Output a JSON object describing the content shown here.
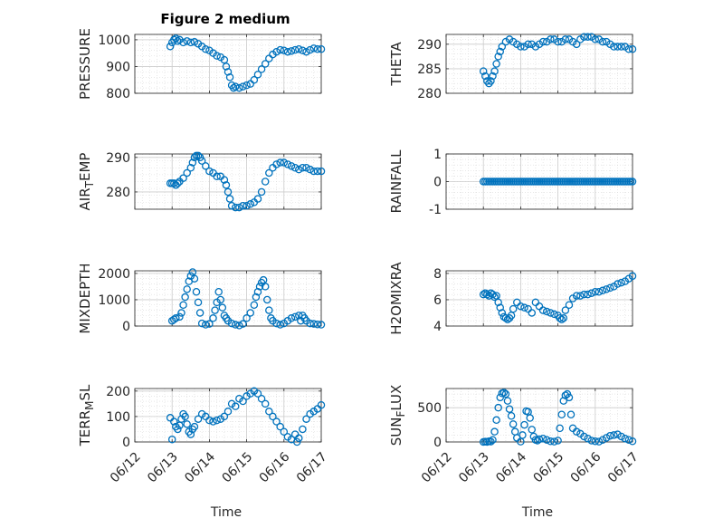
{
  "figure": {
    "title": "Figure 2 medium",
    "xlabel": "Time",
    "marker_color": "#0072BD",
    "x_ticks": [
      "06/12",
      "06/13",
      "06/14",
      "06/15",
      "06/16",
      "06/17"
    ]
  },
  "chart_data": [
    {
      "type": "scatter",
      "ylabel": "PRESSURE",
      "ylim": [
        800,
        1020
      ],
      "yticks": [
        800,
        900,
        1000
      ],
      "xlabel": "",
      "xlim_days": [
        "06/12",
        "06/17"
      ],
      "grid": true,
      "minor_grid": true,
      "series": [
        {
          "x": [
            0.95,
            1.0,
            1.05,
            1.1,
            1.15,
            1.2,
            1.3,
            1.4,
            1.5,
            1.6,
            1.7,
            1.8,
            1.9,
            2.0,
            2.1,
            2.2,
            2.3,
            2.4,
            2.45,
            2.5,
            2.55,
            2.6,
            2.65,
            2.7,
            2.8,
            2.9,
            3.0,
            3.1,
            3.2,
            3.3,
            3.4,
            3.5,
            3.6,
            3.7,
            3.8,
            3.9,
            4.0,
            4.1,
            4.2,
            4.3,
            4.4,
            4.5,
            4.6,
            4.7,
            4.8,
            4.9,
            5.0
          ],
          "y": [
            975,
            990,
            1000,
            1005,
            995,
            1000,
            990,
            995,
            990,
            992,
            985,
            975,
            965,
            960,
            950,
            940,
            935,
            925,
            900,
            880,
            860,
            830,
            820,
            825,
            820,
            825,
            830,
            835,
            850,
            870,
            890,
            910,
            930,
            945,
            955,
            962,
            960,
            955,
            958,
            962,
            965,
            960,
            955,
            962,
            968,
            965,
            965
          ]
        }
      ]
    },
    {
      "type": "scatter",
      "ylabel": "THETA",
      "ylim": [
        280,
        292
      ],
      "yticks": [
        280,
        285,
        290
      ],
      "xlabel": "",
      "xlim_days": [
        "06/12",
        "06/17"
      ],
      "grid": true,
      "minor_grid": true,
      "series": [
        {
          "x": [
            1.0,
            1.05,
            1.1,
            1.15,
            1.2,
            1.25,
            1.3,
            1.35,
            1.4,
            1.45,
            1.5,
            1.6,
            1.7,
            1.8,
            1.9,
            2.0,
            2.1,
            2.2,
            2.3,
            2.4,
            2.5,
            2.6,
            2.7,
            2.8,
            2.9,
            3.0,
            3.1,
            3.2,
            3.3,
            3.4,
            3.5,
            3.6,
            3.7,
            3.8,
            3.9,
            4.0,
            4.1,
            4.2,
            4.3,
            4.4,
            4.5,
            4.6,
            4.7,
            4.8,
            4.9,
            5.0
          ],
          "y": [
            284.5,
            283.5,
            282.5,
            282,
            282.5,
            283.5,
            284.5,
            286,
            287.5,
            288.5,
            289.5,
            290.5,
            291,
            290.5,
            290,
            289.5,
            289.5,
            290,
            290,
            289.5,
            290,
            290.5,
            290.5,
            291,
            291,
            290.5,
            290.5,
            291,
            291,
            290.5,
            290,
            291,
            291.5,
            291.5,
            291.5,
            291,
            291,
            290.5,
            290.5,
            290,
            289.5,
            289.5,
            289.5,
            289.5,
            289,
            289
          ]
        }
      ]
    },
    {
      "type": "scatter",
      "ylabel": "AIR_TEMP",
      "ylim": [
        275,
        291
      ],
      "yticks": [
        280,
        290
      ],
      "xlabel": "",
      "xlim_days": [
        "06/12",
        "06/17"
      ],
      "grid": true,
      "minor_grid": true,
      "series": [
        {
          "x": [
            0.95,
            1.0,
            1.05,
            1.1,
            1.15,
            1.2,
            1.3,
            1.4,
            1.5,
            1.55,
            1.6,
            1.65,
            1.7,
            1.75,
            1.8,
            1.9,
            2.0,
            2.1,
            2.2,
            2.3,
            2.4,
            2.45,
            2.5,
            2.55,
            2.6,
            2.7,
            2.8,
            2.9,
            3.0,
            3.1,
            3.2,
            3.3,
            3.4,
            3.5,
            3.6,
            3.7,
            3.8,
            3.9,
            4.0,
            4.1,
            4.2,
            4.3,
            4.4,
            4.5,
            4.6,
            4.7,
            4.8,
            4.9,
            5.0
          ],
          "y": [
            282.5,
            282.5,
            282.5,
            282,
            282.5,
            283,
            284,
            285.5,
            287,
            288.5,
            290,
            290.5,
            290.5,
            290,
            289,
            287.5,
            286,
            285.5,
            284.5,
            284.5,
            283.5,
            282,
            280,
            278,
            276,
            275.5,
            275.5,
            276,
            276,
            276.5,
            277,
            278,
            280,
            283,
            285.5,
            287,
            288,
            288.5,
            288.5,
            288,
            287.5,
            287,
            286.5,
            287,
            287,
            286.5,
            286,
            286,
            286
          ]
        }
      ]
    },
    {
      "type": "scatter",
      "ylabel": "RAINFALL",
      "ylim": [
        -1,
        1
      ],
      "yticks": [
        -1,
        0,
        1
      ],
      "xlabel": "",
      "xlim_days": [
        "06/12",
        "06/17"
      ],
      "grid": true,
      "minor_grid": true,
      "series": [
        {
          "x": [
            1.0,
            1.05,
            1.1,
            1.15,
            1.2,
            1.25,
            1.3,
            1.35,
            1.4,
            1.45,
            1.5,
            1.55,
            1.6,
            1.65,
            1.7,
            1.75,
            1.8,
            1.85,
            1.9,
            1.95,
            2.0,
            2.05,
            2.1,
            2.15,
            2.2,
            2.25,
            2.3,
            2.35,
            2.4,
            2.45,
            2.5,
            2.55,
            2.6,
            2.65,
            2.7,
            2.75,
            2.8,
            2.85,
            2.9,
            2.95,
            3.0,
            3.05,
            3.1,
            3.15,
            3.2,
            3.25,
            3.3,
            3.35,
            3.4,
            3.45,
            3.5,
            3.55,
            3.6,
            3.65,
            3.7,
            3.75,
            3.8,
            3.85,
            3.9,
            3.95,
            4.0,
            4.05,
            4.1,
            4.15,
            4.2,
            4.25,
            4.3,
            4.35,
            4.4,
            4.45,
            4.5,
            4.55,
            4.6,
            4.65,
            4.7,
            4.75,
            4.8,
            4.85,
            4.9,
            4.95,
            5.0
          ],
          "y": [
            0,
            0,
            0,
            0,
            0,
            0,
            0,
            0,
            0,
            0,
            0,
            0,
            0,
            0,
            0,
            0,
            0,
            0,
            0,
            0,
            0,
            0,
            0,
            0,
            0,
            0,
            0,
            0,
            0,
            0,
            0,
            0,
            0,
            0,
            0,
            0,
            0,
            0,
            0,
            0,
            0,
            0,
            0,
            0,
            0,
            0,
            0,
            0,
            0,
            0,
            0,
            0,
            0,
            0,
            0,
            0,
            0,
            0,
            0,
            0,
            0,
            0,
            0,
            0,
            0,
            0,
            0,
            0,
            0,
            0,
            0,
            0,
            0,
            0,
            0,
            0,
            0,
            0,
            0,
            0,
            0
          ]
        }
      ]
    },
    {
      "type": "scatter",
      "ylabel": "MIXDEPTH",
      "ylim": [
        0,
        2100
      ],
      "yticks": [
        0,
        1000,
        2000
      ],
      "xlabel": "",
      "xlim_days": [
        "06/12",
        "06/17"
      ],
      "grid": true,
      "minor_grid": true,
      "series": [
        {
          "x": [
            1.0,
            1.05,
            1.1,
            1.2,
            1.25,
            1.3,
            1.35,
            1.4,
            1.45,
            1.5,
            1.55,
            1.6,
            1.65,
            1.7,
            1.75,
            1.8,
            1.9,
            2.0,
            2.1,
            2.15,
            2.2,
            2.25,
            2.3,
            2.35,
            2.4,
            2.45,
            2.5,
            2.6,
            2.7,
            2.8,
            2.9,
            3.0,
            3.1,
            3.2,
            3.25,
            3.3,
            3.35,
            3.4,
            3.45,
            3.5,
            3.55,
            3.6,
            3.65,
            3.7,
            3.8,
            3.9,
            4.0,
            4.1,
            4.2,
            4.3,
            4.4,
            4.45,
            4.5,
            4.55,
            4.6,
            4.7,
            4.8,
            4.9,
            5.0
          ],
          "y": [
            200,
            250,
            300,
            350,
            500,
            800,
            1100,
            1400,
            1700,
            1900,
            2050,
            1800,
            1300,
            900,
            500,
            100,
            50,
            80,
            300,
            600,
            900,
            1300,
            1000,
            700,
            400,
            300,
            200,
            100,
            50,
            20,
            80,
            300,
            500,
            800,
            1100,
            1300,
            1500,
            1650,
            1750,
            1500,
            1000,
            600,
            300,
            200,
            100,
            50,
            100,
            200,
            300,
            350,
            400,
            200,
            400,
            300,
            200,
            100,
            80,
            60,
            50
          ]
        }
      ]
    },
    {
      "type": "scatter",
      "ylabel": "H2OMIXRA",
      "ylim": [
        4,
        8.2
      ],
      "yticks": [
        4,
        6,
        8
      ],
      "xlabel": "",
      "xlim_days": [
        "06/12",
        "06/17"
      ],
      "grid": true,
      "minor_grid": true,
      "series": [
        {
          "x": [
            1.0,
            1.05,
            1.1,
            1.15,
            1.2,
            1.25,
            1.3,
            1.35,
            1.4,
            1.45,
            1.5,
            1.55,
            1.6,
            1.65,
            1.7,
            1.75,
            1.8,
            1.9,
            2.0,
            2.1,
            2.2,
            2.3,
            2.4,
            2.5,
            2.6,
            2.7,
            2.8,
            2.9,
            3.0,
            3.05,
            3.1,
            3.15,
            3.2,
            3.3,
            3.4,
            3.5,
            3.6,
            3.7,
            3.8,
            3.9,
            4.0,
            4.1,
            4.2,
            4.3,
            4.4,
            4.5,
            4.6,
            4.7,
            4.8,
            4.9,
            5.0
          ],
          "y": [
            6.4,
            6.5,
            6.4,
            6.3,
            6.5,
            6.4,
            6.2,
            6.3,
            5.8,
            5.4,
            5.0,
            4.7,
            4.6,
            4.5,
            4.6,
            4.8,
            5.3,
            5.8,
            5.5,
            5.4,
            5.3,
            5.0,
            5.8,
            5.5,
            5.2,
            5.1,
            5.0,
            4.9,
            4.8,
            4.6,
            4.5,
            4.6,
            5.2,
            5.6,
            6.1,
            6.3,
            6.3,
            6.4,
            6.4,
            6.5,
            6.6,
            6.6,
            6.7,
            6.8,
            6.9,
            7.0,
            7.2,
            7.3,
            7.4,
            7.6,
            7.8
          ]
        }
      ]
    },
    {
      "type": "scatter",
      "ylabel": "TERR_MSL",
      "ylim": [
        0,
        210
      ],
      "yticks": [
        0,
        100,
        200
      ],
      "xlabel": "",
      "xlim_days": [
        "06/12",
        "06/17"
      ],
      "grid": true,
      "minor_grid": true,
      "series": [
        {
          "x": [
            0.95,
            1.0,
            1.05,
            1.1,
            1.15,
            1.2,
            1.25,
            1.3,
            1.35,
            1.4,
            1.45,
            1.5,
            1.55,
            1.6,
            1.7,
            1.8,
            1.9,
            2.0,
            2.1,
            2.2,
            2.3,
            2.4,
            2.5,
            2.6,
            2.7,
            2.8,
            2.9,
            3.0,
            3.1,
            3.2,
            3.3,
            3.4,
            3.5,
            3.6,
            3.7,
            3.8,
            3.9,
            4.0,
            4.1,
            4.2,
            4.3,
            4.35,
            4.4,
            4.5,
            4.6,
            4.7,
            4.8,
            4.9,
            5.0
          ],
          "y": [
            95,
            10,
            80,
            60,
            50,
            65,
            90,
            110,
            100,
            70,
            40,
            30,
            50,
            60,
            90,
            110,
            100,
            85,
            80,
            85,
            90,
            100,
            120,
            150,
            140,
            170,
            160,
            180,
            190,
            200,
            190,
            170,
            150,
            120,
            100,
            80,
            60,
            40,
            20,
            10,
            30,
            0,
            15,
            50,
            90,
            110,
            120,
            130,
            145
          ]
        }
      ]
    },
    {
      "type": "scatter",
      "ylabel": "SUN_FLUX",
      "ylim": [
        0,
        780
      ],
      "yticks": [
        0,
        500
      ],
      "xlabel": "",
      "xlim_days": [
        "06/12",
        "06/17"
      ],
      "grid": true,
      "minor_grid": true,
      "series": [
        {
          "x": [
            1.0,
            1.05,
            1.1,
            1.15,
            1.2,
            1.25,
            1.3,
            1.35,
            1.4,
            1.45,
            1.5,
            1.55,
            1.6,
            1.65,
            1.7,
            1.75,
            1.8,
            1.85,
            1.9,
            2.0,
            2.05,
            2.1,
            2.15,
            2.2,
            2.25,
            2.3,
            2.35,
            2.4,
            2.45,
            2.5,
            2.6,
            2.7,
            2.8,
            2.9,
            3.0,
            3.05,
            3.1,
            3.15,
            3.2,
            3.25,
            3.3,
            3.35,
            3.4,
            3.5,
            3.6,
            3.7,
            3.8,
            3.9,
            4.0,
            4.1,
            4.2,
            4.3,
            4.4,
            4.5,
            4.6,
            4.7,
            4.8,
            4.9,
            5.0
          ],
          "y": [
            0,
            5,
            0,
            10,
            5,
            30,
            150,
            320,
            500,
            650,
            710,
            720,
            700,
            600,
            480,
            380,
            260,
            150,
            60,
            5,
            100,
            250,
            450,
            440,
            350,
            180,
            80,
            30,
            20,
            40,
            50,
            30,
            10,
            5,
            20,
            200,
            400,
            600,
            680,
            700,
            650,
            400,
            200,
            150,
            120,
            80,
            50,
            20,
            10,
            5,
            30,
            60,
            90,
            100,
            110,
            80,
            50,
            30,
            10
          ]
        }
      ]
    }
  ]
}
